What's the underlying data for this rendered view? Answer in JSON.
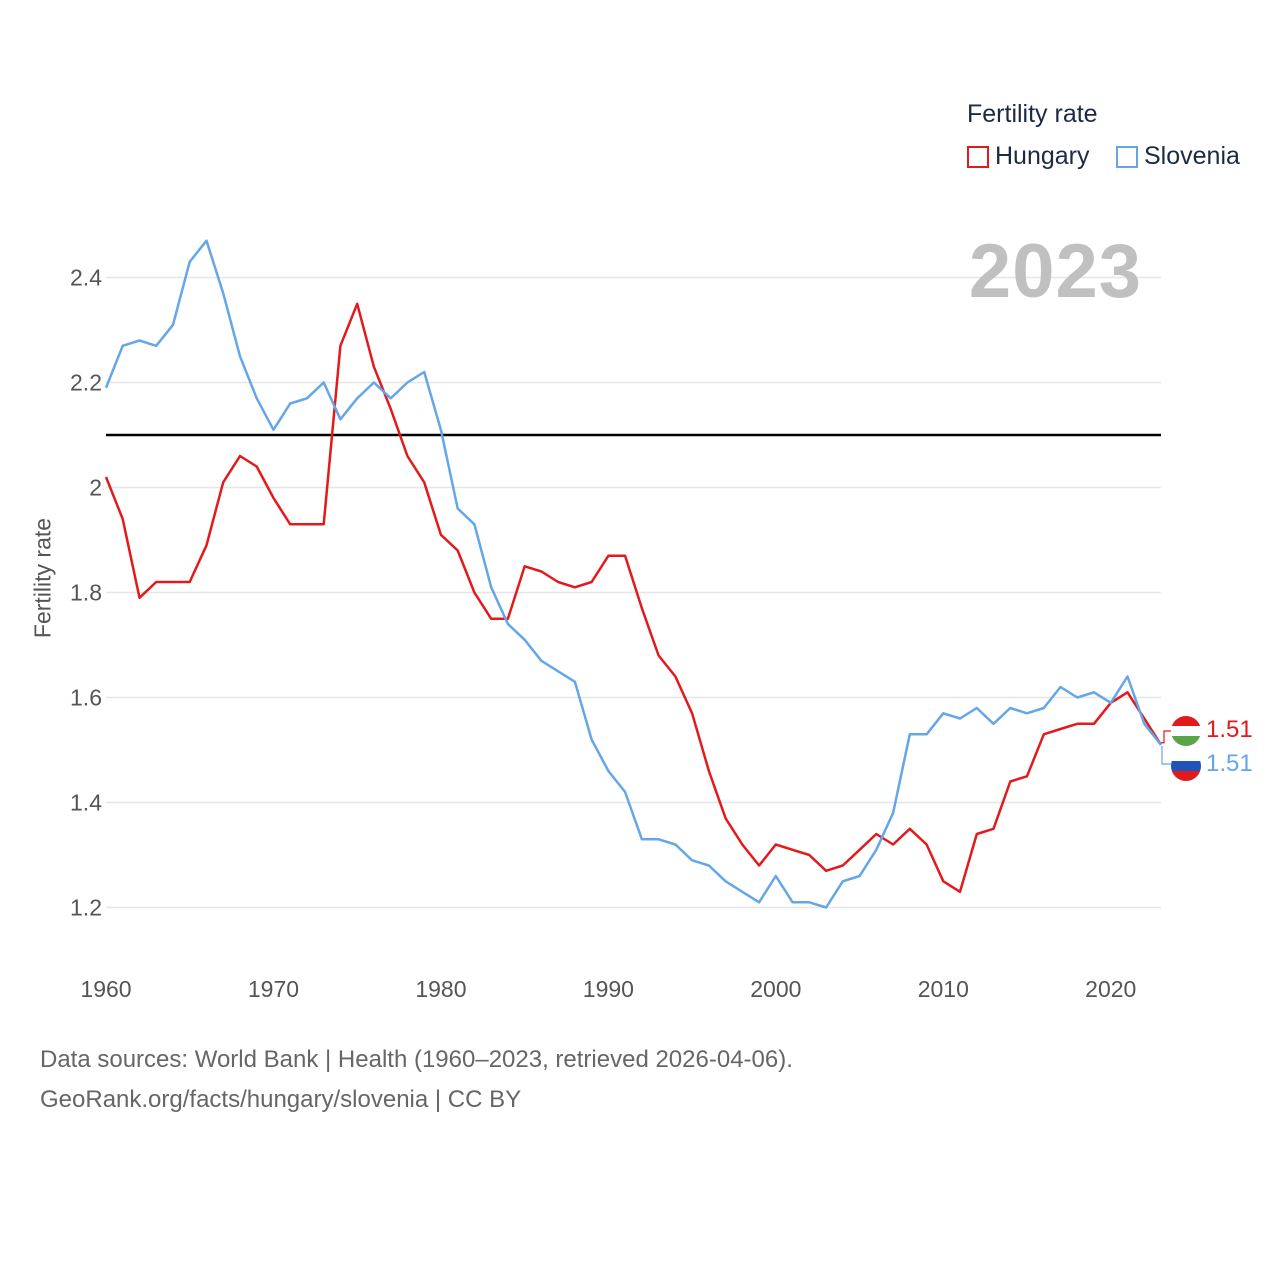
{
  "chart_data": {
    "type": "line",
    "legend_title": "Fertility rate",
    "ylabel": "Fertility rate",
    "xlabel": "",
    "year_label": "2023",
    "x": [
      1960,
      1961,
      1962,
      1963,
      1964,
      1965,
      1966,
      1967,
      1968,
      1969,
      1970,
      1971,
      1972,
      1973,
      1974,
      1975,
      1976,
      1977,
      1978,
      1979,
      1980,
      1981,
      1982,
      1983,
      1984,
      1985,
      1986,
      1987,
      1988,
      1989,
      1990,
      1991,
      1992,
      1993,
      1994,
      1995,
      1996,
      1997,
      1998,
      1999,
      2000,
      2001,
      2002,
      2003,
      2004,
      2005,
      2006,
      2007,
      2008,
      2009,
      2010,
      2011,
      2012,
      2013,
      2014,
      2015,
      2016,
      2017,
      2018,
      2019,
      2020,
      2021,
      2022,
      2023
    ],
    "xlim": [
      1960,
      2023
    ],
    "ylim": [
      1.1,
      2.5
    ],
    "x_ticks": [
      "1960",
      "1970",
      "1980",
      "1990",
      "2000",
      "2010",
      "2020"
    ],
    "y_ticks": [
      "1.2",
      "1.4",
      "1.6",
      "1.8",
      "2",
      "2.2",
      "2.4"
    ],
    "reference_line": 2.1,
    "series": [
      {
        "name": "Hungary",
        "color": "#e31a1c",
        "end_label": "1.51",
        "values": [
          2.02,
          1.94,
          1.79,
          1.82,
          1.82,
          1.82,
          1.89,
          2.01,
          2.06,
          2.04,
          1.98,
          1.93,
          1.93,
          1.93,
          2.27,
          2.35,
          2.23,
          2.15,
          2.06,
          2.01,
          1.91,
          1.88,
          1.8,
          1.75,
          1.75,
          1.85,
          1.84,
          1.82,
          1.81,
          1.82,
          1.87,
          1.87,
          1.77,
          1.68,
          1.64,
          1.57,
          1.46,
          1.37,
          1.32,
          1.28,
          1.32,
          1.31,
          1.3,
          1.27,
          1.28,
          1.31,
          1.34,
          1.32,
          1.35,
          1.32,
          1.25,
          1.23,
          1.34,
          1.35,
          1.44,
          1.45,
          1.53,
          1.54,
          1.55,
          1.55,
          1.59,
          1.61,
          1.56,
          1.51
        ]
      },
      {
        "name": "Slovenia",
        "color": "#64a6e8",
        "end_label": "1.51",
        "values": [
          2.19,
          2.27,
          2.28,
          2.27,
          2.31,
          2.43,
          2.47,
          2.37,
          2.25,
          2.17,
          2.11,
          2.16,
          2.17,
          2.2,
          2.13,
          2.17,
          2.2,
          2.17,
          2.2,
          2.22,
          2.11,
          1.96,
          1.93,
          1.81,
          1.74,
          1.71,
          1.67,
          1.65,
          1.63,
          1.52,
          1.46,
          1.42,
          1.33,
          1.33,
          1.32,
          1.29,
          1.28,
          1.25,
          1.23,
          1.21,
          1.26,
          1.21,
          1.21,
          1.2,
          1.25,
          1.26,
          1.31,
          1.38,
          1.53,
          1.53,
          1.57,
          1.56,
          1.58,
          1.55,
          1.58,
          1.57,
          1.58,
          1.62,
          1.6,
          1.61,
          1.59,
          1.64,
          1.55,
          1.51
        ]
      }
    ]
  },
  "footer": {
    "line1": "Data sources: World Bank | Health (1960–2023, retrieved 2026-04-06).",
    "line2": "GeoRank.org/facts/hungary/slovenia | CC BY"
  }
}
